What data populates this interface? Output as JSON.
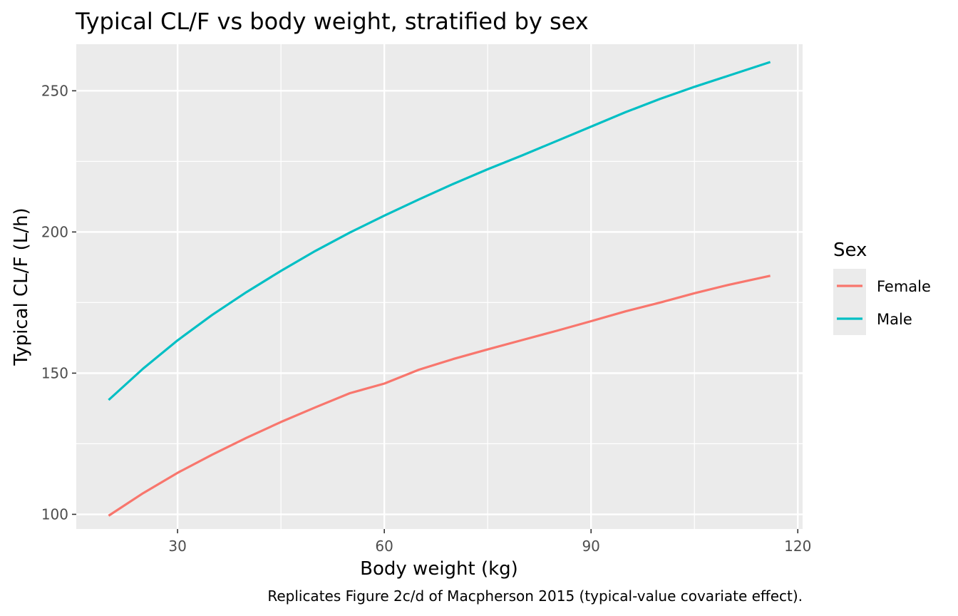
{
  "chart_data": {
    "type": "line",
    "title": "Typical CL/F vs body weight, stratified by sex",
    "xlabel": "Body weight (kg)",
    "ylabel": "Typical CL/F (L/h)",
    "caption": "Replicates Figure 2c/d of Macpherson 2015 (typical-value covariate effect).",
    "xlim": [
      15.3,
      120.7
    ],
    "ylim": [
      94.8,
      266.5
    ],
    "x_ticks": [
      30,
      60,
      90,
      120
    ],
    "y_ticks": [
      100,
      150,
      200,
      250
    ],
    "grid": true,
    "legend": {
      "title": "Sex",
      "placement": "right"
    },
    "series": [
      {
        "name": "Female",
        "color": "#F8766D",
        "x": [
          20,
          25,
          30,
          35,
          40,
          45,
          50,
          55,
          60,
          65,
          70,
          75,
          80,
          85,
          90,
          95,
          100,
          105,
          110,
          116
        ],
        "y": [
          99.5,
          107.5,
          114.7,
          121.1,
          127.1,
          132.7,
          137.9,
          142.9,
          146.3,
          151.2,
          155.0,
          158.4,
          161.7,
          165.0,
          168.4,
          171.9,
          175.0,
          178.3,
          181.3,
          184.5
        ]
      },
      {
        "name": "Male",
        "color": "#00BFC4",
        "x": [
          20,
          25,
          30,
          35,
          40,
          45,
          50,
          55,
          60,
          65,
          70,
          75,
          80,
          85,
          90,
          95,
          100,
          105,
          110,
          116
        ],
        "y": [
          140.5,
          151.6,
          161.6,
          170.6,
          178.7,
          186.2,
          193.3,
          199.8,
          205.8,
          211.5,
          217.0,
          222.2,
          227.1,
          232.2,
          237.3,
          242.4,
          247.1,
          251.4,
          255.4,
          260.2
        ]
      }
    ]
  }
}
